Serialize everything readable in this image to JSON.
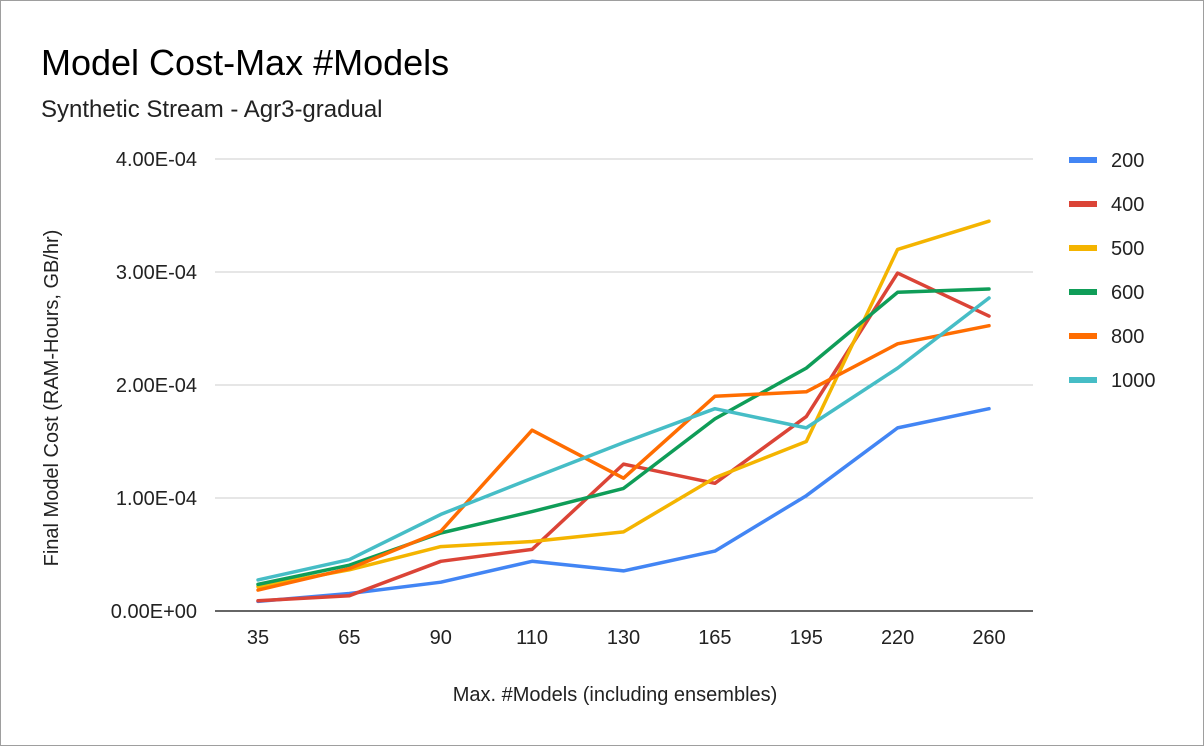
{
  "chart_data": {
    "type": "line",
    "title": "Model Cost-Max #Models",
    "subtitle": "Synthetic Stream - Agr3-gradual",
    "xlabel": "Max. #Models (including ensembles)",
    "ylabel": "Final Model Cost (RAM-Hours, GB/hr)",
    "categories": [
      "35",
      "65",
      "90",
      "110",
      "130",
      "165",
      "195",
      "220",
      "260"
    ],
    "y_ticks": [
      "0.00E+00",
      "1.00E-04",
      "2.00E-04",
      "3.00E-04",
      "4.00E-04"
    ],
    "ylim": [
      0,
      0.0004
    ],
    "grid": true,
    "legend_position": "right",
    "series": [
      {
        "name": "200",
        "color": "#4285f4",
        "values": [
          8.5e-06,
          1.55e-05,
          2.55e-05,
          4.4e-05,
          3.55e-05,
          5.3e-05,
          0.000102,
          0.000162,
          0.000179
        ]
      },
      {
        "name": "400",
        "color": "#db4437",
        "values": [
          9e-06,
          1.35e-05,
          4.4e-05,
          5.45e-05,
          0.00013,
          0.000113,
          0.000172,
          0.000299,
          0.000261
        ]
      },
      {
        "name": "500",
        "color": "#f4b400",
        "values": [
          2.15e-05,
          3.65e-05,
          5.7e-05,
          6.15e-05,
          7e-05,
          0.000118,
          0.00015,
          0.00032,
          0.000345
        ]
      },
      {
        "name": "600",
        "color": "#0f9d58",
        "values": [
          2.35e-05,
          4.05e-05,
          6.9e-05,
          8.8e-05,
          0.0001085,
          0.00017,
          0.000215,
          0.000282,
          0.000285
        ]
      },
      {
        "name": "800",
        "color": "#ff6d01",
        "values": [
          1.85e-05,
          3.75e-05,
          7.05e-05,
          0.00016,
          0.0001175,
          0.00019,
          0.000194,
          0.0002365,
          0.0002525
        ]
      },
      {
        "name": "1000",
        "color": "#46bdc6",
        "values": [
          2.75e-05,
          4.55e-05,
          8.55e-05,
          0.0001175,
          0.000149,
          0.000179,
          0.000162,
          0.000215,
          0.000277
        ]
      }
    ]
  }
}
